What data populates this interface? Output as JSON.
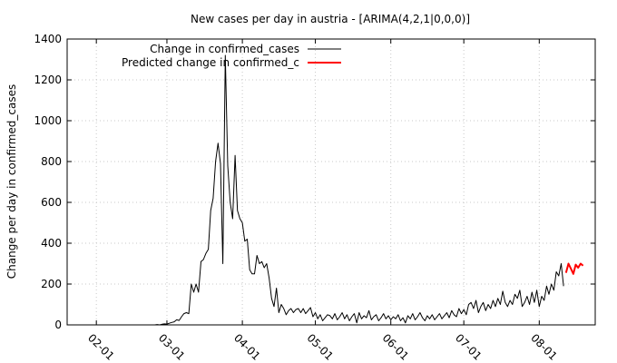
{
  "chart_data": {
    "type": "line",
    "title": "New cases per day in austria -  [ARIMA(4,2,1|0,0,0)]",
    "xlabel": "",
    "ylabel": "Change per day in confirmed_cases",
    "x_ticks": [
      "02-01",
      "03-01",
      "04-01",
      "05-01",
      "06-01",
      "07-01",
      "08-01"
    ],
    "x_range": [
      "2020-01-20",
      "2020-08-24"
    ],
    "y_ticks": [
      0,
      200,
      400,
      600,
      800,
      1000,
      1200,
      1400
    ],
    "ylim": [
      0,
      1400
    ],
    "grid": true,
    "legend_position": "top-left",
    "series": [
      {
        "name": "Change in confirmed_cases",
        "color": "#000000",
        "points": [
          [
            "2020-02-25",
            0
          ],
          [
            "2020-02-26",
            2
          ],
          [
            "2020-02-27",
            0
          ],
          [
            "2020-02-28",
            3
          ],
          [
            "2020-02-29",
            5
          ],
          [
            "2020-03-01",
            4
          ],
          [
            "2020-03-02",
            8
          ],
          [
            "2020-03-03",
            12
          ],
          [
            "2020-03-04",
            15
          ],
          [
            "2020-03-05",
            25
          ],
          [
            "2020-03-06",
            22
          ],
          [
            "2020-03-07",
            40
          ],
          [
            "2020-03-08",
            55
          ],
          [
            "2020-03-09",
            60
          ],
          [
            "2020-03-10",
            55
          ],
          [
            "2020-03-11",
            200
          ],
          [
            "2020-03-12",
            160
          ],
          [
            "2020-03-13",
            200
          ],
          [
            "2020-03-14",
            160
          ],
          [
            "2020-03-15",
            310
          ],
          [
            "2020-03-16",
            320
          ],
          [
            "2020-03-17",
            350
          ],
          [
            "2020-03-18",
            370
          ],
          [
            "2020-03-19",
            560
          ],
          [
            "2020-03-20",
            620
          ],
          [
            "2020-03-21",
            800
          ],
          [
            "2020-03-22",
            890
          ],
          [
            "2020-03-23",
            790
          ],
          [
            "2020-03-24",
            300
          ],
          [
            "2020-03-25",
            1320
          ],
          [
            "2020-03-26",
            780
          ],
          [
            "2020-03-27",
            600
          ],
          [
            "2020-03-28",
            520
          ],
          [
            "2020-03-29",
            830
          ],
          [
            "2020-03-30",
            560
          ],
          [
            "2020-03-31",
            520
          ],
          [
            "2020-04-01",
            500
          ],
          [
            "2020-04-02",
            410
          ],
          [
            "2020-04-03",
            420
          ],
          [
            "2020-04-04",
            270
          ],
          [
            "2020-04-05",
            250
          ],
          [
            "2020-04-06",
            250
          ],
          [
            "2020-04-07",
            340
          ],
          [
            "2020-04-08",
            300
          ],
          [
            "2020-04-09",
            310
          ],
          [
            "2020-04-10",
            280
          ],
          [
            "2020-04-11",
            300
          ],
          [
            "2020-04-12",
            230
          ],
          [
            "2020-04-13",
            130
          ],
          [
            "2020-04-14",
            90
          ],
          [
            "2020-04-15",
            180
          ],
          [
            "2020-04-16",
            60
          ],
          [
            "2020-04-17",
            100
          ],
          [
            "2020-04-18",
            80
          ],
          [
            "2020-04-19",
            50
          ],
          [
            "2020-04-20",
            70
          ],
          [
            "2020-04-21",
            80
          ],
          [
            "2020-04-22",
            60
          ],
          [
            "2020-04-23",
            75
          ],
          [
            "2020-04-24",
            80
          ],
          [
            "2020-04-25",
            60
          ],
          [
            "2020-04-26",
            80
          ],
          [
            "2020-04-27",
            55
          ],
          [
            "2020-04-28",
            70
          ],
          [
            "2020-04-29",
            85
          ],
          [
            "2020-04-30",
            40
          ],
          [
            "2020-05-01",
            60
          ],
          [
            "2020-05-02",
            30
          ],
          [
            "2020-05-03",
            50
          ],
          [
            "2020-05-04",
            20
          ],
          [
            "2020-05-05",
            35
          ],
          [
            "2020-05-06",
            50
          ],
          [
            "2020-05-07",
            45
          ],
          [
            "2020-05-08",
            30
          ],
          [
            "2020-05-09",
            55
          ],
          [
            "2020-05-10",
            25
          ],
          [
            "2020-05-11",
            40
          ],
          [
            "2020-05-12",
            60
          ],
          [
            "2020-05-13",
            30
          ],
          [
            "2020-05-14",
            50
          ],
          [
            "2020-05-15",
            20
          ],
          [
            "2020-05-16",
            40
          ],
          [
            "2020-05-17",
            55
          ],
          [
            "2020-05-18",
            10
          ],
          [
            "2020-05-19",
            60
          ],
          [
            "2020-05-20",
            30
          ],
          [
            "2020-05-21",
            45
          ],
          [
            "2020-05-22",
            35
          ],
          [
            "2020-05-23",
            70
          ],
          [
            "2020-05-24",
            25
          ],
          [
            "2020-05-25",
            40
          ],
          [
            "2020-05-26",
            50
          ],
          [
            "2020-05-27",
            20
          ],
          [
            "2020-05-28",
            35
          ],
          [
            "2020-05-29",
            55
          ],
          [
            "2020-05-30",
            30
          ],
          [
            "2020-05-31",
            45
          ],
          [
            "2020-06-01",
            25
          ],
          [
            "2020-06-02",
            40
          ],
          [
            "2020-06-03",
            30
          ],
          [
            "2020-06-04",
            50
          ],
          [
            "2020-06-05",
            20
          ],
          [
            "2020-06-06",
            35
          ],
          [
            "2020-06-07",
            10
          ],
          [
            "2020-06-08",
            45
          ],
          [
            "2020-06-09",
            30
          ],
          [
            "2020-06-10",
            55
          ],
          [
            "2020-06-11",
            25
          ],
          [
            "2020-06-12",
            40
          ],
          [
            "2020-06-13",
            60
          ],
          [
            "2020-06-14",
            35
          ],
          [
            "2020-06-15",
            20
          ],
          [
            "2020-06-16",
            45
          ],
          [
            "2020-06-17",
            30
          ],
          [
            "2020-06-18",
            50
          ],
          [
            "2020-06-19",
            25
          ],
          [
            "2020-06-20",
            40
          ],
          [
            "2020-06-21",
            55
          ],
          [
            "2020-06-22",
            30
          ],
          [
            "2020-06-23",
            45
          ],
          [
            "2020-06-24",
            60
          ],
          [
            "2020-06-25",
            35
          ],
          [
            "2020-06-26",
            70
          ],
          [
            "2020-06-27",
            50
          ],
          [
            "2020-06-28",
            40
          ],
          [
            "2020-06-29",
            80
          ],
          [
            "2020-06-30",
            55
          ],
          [
            "2020-07-01",
            75
          ],
          [
            "2020-07-02",
            50
          ],
          [
            "2020-07-03",
            100
          ],
          [
            "2020-07-04",
            110
          ],
          [
            "2020-07-05",
            80
          ],
          [
            "2020-07-06",
            120
          ],
          [
            "2020-07-07",
            60
          ],
          [
            "2020-07-08",
            90
          ],
          [
            "2020-07-09",
            110
          ],
          [
            "2020-07-10",
            70
          ],
          [
            "2020-07-11",
            100
          ],
          [
            "2020-07-12",
            80
          ],
          [
            "2020-07-13",
            120
          ],
          [
            "2020-07-14",
            90
          ],
          [
            "2020-07-15",
            130
          ],
          [
            "2020-07-16",
            100
          ],
          [
            "2020-07-17",
            165
          ],
          [
            "2020-07-18",
            110
          ],
          [
            "2020-07-19",
            90
          ],
          [
            "2020-07-20",
            120
          ],
          [
            "2020-07-21",
            100
          ],
          [
            "2020-07-22",
            150
          ],
          [
            "2020-07-23",
            130
          ],
          [
            "2020-07-24",
            170
          ],
          [
            "2020-07-25",
            90
          ],
          [
            "2020-07-26",
            110
          ],
          [
            "2020-07-27",
            140
          ],
          [
            "2020-07-28",
            100
          ],
          [
            "2020-07-29",
            160
          ],
          [
            "2020-07-30",
            110
          ],
          [
            "2020-07-31",
            170
          ],
          [
            "2020-08-01",
            90
          ],
          [
            "2020-08-02",
            140
          ],
          [
            "2020-08-03",
            120
          ],
          [
            "2020-08-04",
            190
          ],
          [
            "2020-08-05",
            150
          ],
          [
            "2020-08-06",
            200
          ],
          [
            "2020-08-07",
            170
          ],
          [
            "2020-08-08",
            260
          ],
          [
            "2020-08-09",
            240
          ],
          [
            "2020-08-10",
            300
          ],
          [
            "2020-08-11",
            190
          ]
        ]
      },
      {
        "name": "Predicted change in confirmed_c",
        "color": "#ff0000",
        "points": [
          [
            "2020-08-12",
            255
          ],
          [
            "2020-08-13",
            300
          ],
          [
            "2020-08-14",
            275
          ],
          [
            "2020-08-15",
            250
          ],
          [
            "2020-08-16",
            295
          ],
          [
            "2020-08-17",
            280
          ],
          [
            "2020-08-18",
            300
          ],
          [
            "2020-08-19",
            290
          ]
        ]
      }
    ]
  }
}
